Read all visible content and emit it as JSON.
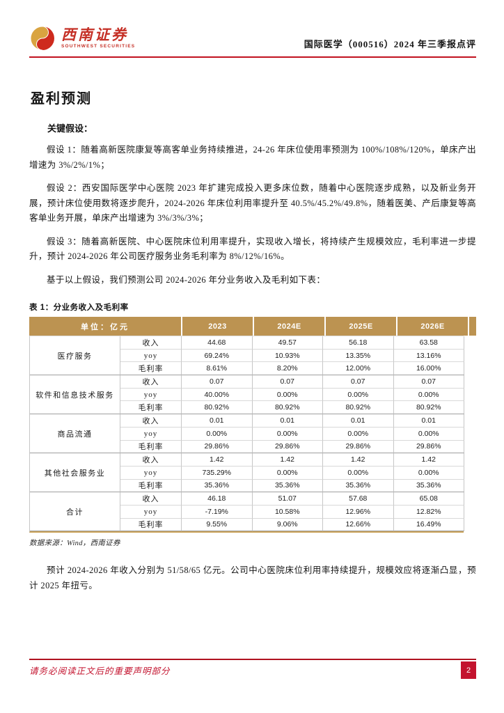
{
  "header": {
    "brand_cn": "西南证券",
    "brand_en": "SOUTHWEST SECURITIES",
    "report_title": "国际医学（000516）2024 年三季报点评"
  },
  "section_title": "盈利预测",
  "paragraphs": {
    "key_assumptions_label": "关键假设：",
    "assumption1": "假设 1：随着高新医院康复等高客单业务持续推进，24-26 年床位使用率预测为 100%/108%/120%，单床产出增速为 3%/2%/1%；",
    "assumption2": "假设 2：西安国际医学中心医院 2023 年扩建完成投入更多床位数，随着中心医院逐步成熟，以及新业务开展，预计床位使用数将逐步爬升，2024-2026 年床位利用率提升至 40.5%/45.2%/49.8%，随着医美、产后康复等高客单业务开展，单床产出增速为 3%/3%/3%；",
    "assumption3": "假设 3：随着高新医院、中心医院床位利用率提升，实现收入增长，将持续产生规模效应，毛利率进一步提升，预计 2024-2026 年公司医疗服务业务毛利率为 8%/12%/16%。",
    "table_intro": "基于以上假设，我们预测公司 2024-2026 年分业务收入及毛利如下表：",
    "conclusion": "预计 2024-2026 年收入分别为 51/58/65 亿元。公司中心医院床位利用率持续提升，规模效应将逐渐凸显，预计 2025 年扭亏。"
  },
  "table": {
    "caption": "表 1：分业务收入及毛利率",
    "unit_header": "单位：亿元",
    "year_headers": [
      "2023",
      "2024E",
      "2025E",
      "2026E"
    ],
    "groups": [
      {
        "name": "医疗服务",
        "rows": [
          {
            "metric": "收入",
            "values": [
              "44.68",
              "49.57",
              "56.18",
              "63.58"
            ]
          },
          {
            "metric": "yoy",
            "values": [
              "69.24%",
              "10.93%",
              "13.35%",
              "13.16%"
            ]
          },
          {
            "metric": "毛利率",
            "values": [
              "8.61%",
              "8.20%",
              "12.00%",
              "16.00%"
            ]
          }
        ]
      },
      {
        "name": "软件和信息技术服务",
        "rows": [
          {
            "metric": "收入",
            "values": [
              "0.07",
              "0.07",
              "0.07",
              "0.07"
            ]
          },
          {
            "metric": "yoy",
            "values": [
              "40.00%",
              "0.00%",
              "0.00%",
              "0.00%"
            ]
          },
          {
            "metric": "毛利率",
            "values": [
              "80.92%",
              "80.92%",
              "80.92%",
              "80.92%"
            ]
          }
        ]
      },
      {
        "name": "商品流通",
        "rows": [
          {
            "metric": "收入",
            "values": [
              "0.01",
              "0.01",
              "0.01",
              "0.01"
            ]
          },
          {
            "metric": "yoy",
            "values": [
              "0.00%",
              "0.00%",
              "0.00%",
              "0.00%"
            ]
          },
          {
            "metric": "毛利率",
            "values": [
              "29.86%",
              "29.86%",
              "29.86%",
              "29.86%"
            ]
          }
        ]
      },
      {
        "name": "其他社会服务业",
        "rows": [
          {
            "metric": "收入",
            "values": [
              "1.42",
              "1.42",
              "1.42",
              "1.42"
            ]
          },
          {
            "metric": "yoy",
            "values": [
              "735.29%",
              "0.00%",
              "0.00%",
              "0.00%"
            ]
          },
          {
            "metric": "毛利率",
            "values": [
              "35.36%",
              "35.36%",
              "35.36%",
              "35.36%"
            ]
          }
        ]
      },
      {
        "name": "合计",
        "rows": [
          {
            "metric": "收入",
            "values": [
              "46.18",
              "51.07",
              "57.68",
              "65.08"
            ]
          },
          {
            "metric": "yoy",
            "values": [
              "-7.19%",
              "10.58%",
              "12.96%",
              "12.82%"
            ]
          },
          {
            "metric": "毛利率",
            "values": [
              "9.55%",
              "9.06%",
              "12.66%",
              "16.49%"
            ]
          }
        ]
      }
    ],
    "source": "数据来源：Wind，西南证券"
  },
  "footer": {
    "disclaimer": "请务必阅读正文后的重要声明部分",
    "page_number": "2"
  },
  "colors": {
    "accent_red": "#C1121F",
    "footer_red": "#C3132E",
    "logo_red": "#C53026",
    "logo_gold": "#D9A441",
    "table_header_bg": "#BC9351",
    "table_bottom_rule": "#C9A258",
    "table_border": "#C6C6C6"
  }
}
